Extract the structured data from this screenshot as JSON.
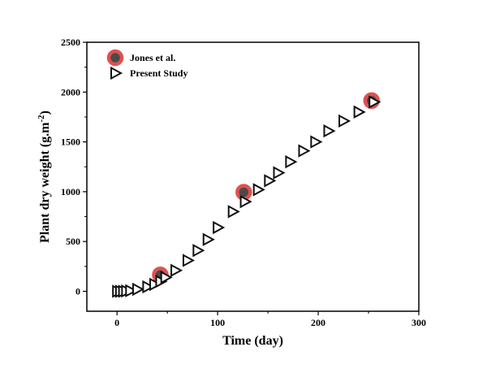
{
  "chart_data": {
    "type": "scatter",
    "title": "",
    "xlabel": "Time (day)",
    "ylabel": "Plant dry weight (g.m",
    "ylabel_sup": "-2",
    "ylabel_close": ")",
    "xlim": [
      -30,
      300
    ],
    "ylim": [
      -200,
      2500
    ],
    "xticks": [
      0,
      100,
      200,
      300
    ],
    "yticks": [
      0,
      500,
      1000,
      1500,
      2000,
      2500
    ],
    "grid": false,
    "legend_position": "top-left",
    "series": [
      {
        "name": "Jones et al.",
        "marker": "circle",
        "fill": "#4a4a4a",
        "outline": "#e05050",
        "points": [
          [
            43,
            165
          ],
          [
            126,
            995
          ],
          [
            253,
            1915
          ]
        ]
      },
      {
        "name": "Present Study",
        "marker": "triangle-right",
        "fill": "#ffffff",
        "outline": "#111111",
        "points": [
          [
            0,
            0
          ],
          [
            3,
            0
          ],
          [
            6,
            0
          ],
          [
            9,
            3
          ],
          [
            13,
            6
          ],
          [
            20,
            20
          ],
          [
            30,
            45
          ],
          [
            37,
            70
          ],
          [
            43,
            100
          ],
          [
            48,
            140
          ],
          [
            58,
            210
          ],
          [
            70,
            310
          ],
          [
            80,
            410
          ],
          [
            90,
            520
          ],
          [
            100,
            640
          ],
          [
            115,
            800
          ],
          [
            127,
            900
          ],
          [
            140,
            1020
          ],
          [
            151,
            1110
          ],
          [
            160,
            1190
          ],
          [
            172,
            1300
          ],
          [
            185,
            1410
          ],
          [
            197,
            1500
          ],
          [
            210,
            1610
          ],
          [
            225,
            1710
          ],
          [
            240,
            1800
          ],
          [
            255,
            1900
          ]
        ]
      }
    ]
  }
}
